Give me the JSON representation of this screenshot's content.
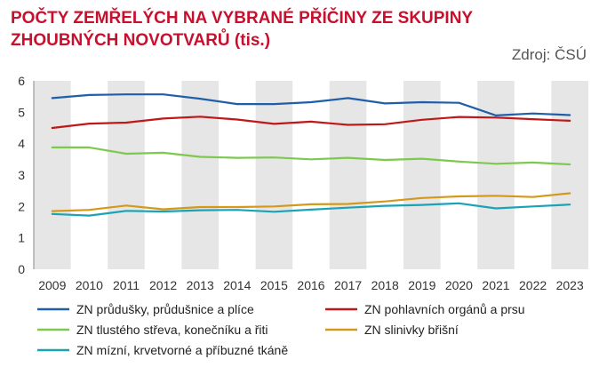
{
  "header": {
    "title": "POČTY ZEMŘELÝCH NA VYBRANÉ PŘÍČINY ZE SKUPINY ZHOUBNÝCH NOVOTVARŮ (tis.)",
    "source": "Zdroj: ČSÚ"
  },
  "chart_data": {
    "type": "line",
    "title": "POČTY ZEMŘELÝCH NA VYBRANÉ PŘÍČINY ZE SKUPINY ZHOUBNÝCH NOVOTVARŮ (tis.)",
    "xlabel": "",
    "ylabel": "",
    "ylim": [
      0,
      6
    ],
    "yticks": [
      "0",
      "1",
      "2",
      "3",
      "4",
      "5",
      "6"
    ],
    "grid": "alternating vertical bands",
    "legend_position": "bottom",
    "x": [
      "2009",
      "2010",
      "2011",
      "2012",
      "2013",
      "2014",
      "2015",
      "2016",
      "2017",
      "2018",
      "2019",
      "2020",
      "2021",
      "2022",
      "2023"
    ],
    "series": [
      {
        "name": "ZN průdušky, průdušnice a plíce",
        "color": "#1f5fa8",
        "values": [
          5.45,
          5.55,
          5.57,
          5.57,
          5.43,
          5.26,
          5.26,
          5.32,
          5.45,
          5.28,
          5.32,
          5.3,
          4.9,
          4.96,
          4.91
        ]
      },
      {
        "name": "ZN pohlavních orgánů a prsu",
        "color": "#c01818",
        "values": [
          4.5,
          4.64,
          4.67,
          4.8,
          4.86,
          4.77,
          4.63,
          4.7,
          4.6,
          4.62,
          4.76,
          4.85,
          4.83,
          4.78,
          4.73
        ]
      },
      {
        "name": "ZN tlustého střeva, konečníku a řiti",
        "color": "#7ec850",
        "values": [
          3.88,
          3.88,
          3.68,
          3.71,
          3.58,
          3.55,
          3.56,
          3.5,
          3.55,
          3.48,
          3.52,
          3.43,
          3.36,
          3.4,
          3.34
        ]
      },
      {
        "name": "ZN slinivky břišní",
        "color": "#d4981a",
        "values": [
          1.85,
          1.89,
          2.03,
          1.91,
          1.98,
          1.98,
          2.0,
          2.07,
          2.08,
          2.16,
          2.27,
          2.32,
          2.34,
          2.3,
          2.42
        ]
      },
      {
        "name": "ZN mízní, krvetvorné a příbuzné tkáně",
        "color": "#1aa3b5",
        "values": [
          1.76,
          1.71,
          1.86,
          1.84,
          1.88,
          1.89,
          1.83,
          1.9,
          1.96,
          2.02,
          2.05,
          2.1,
          1.94,
          2.0,
          2.06
        ]
      }
    ]
  }
}
